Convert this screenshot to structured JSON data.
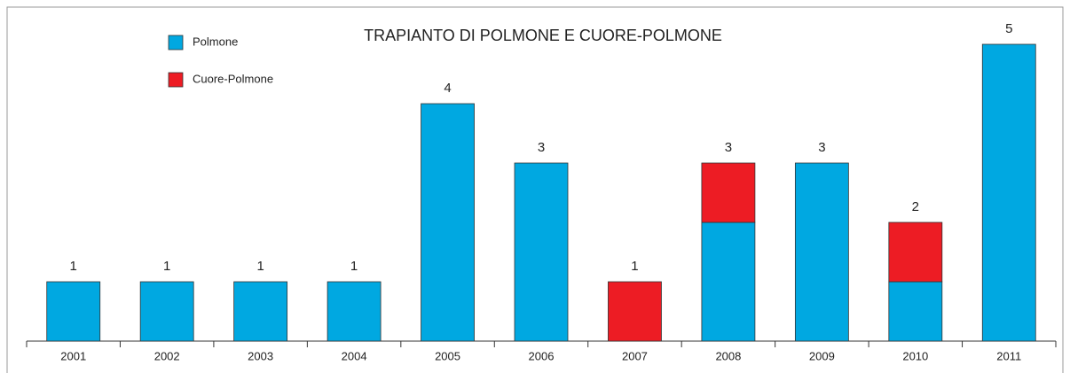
{
  "chart_data": {
    "type": "stacked_bar",
    "title": "TRAPIANTO DI POLMONE E CUORE-POLMONE",
    "categories": [
      "2001",
      "2002",
      "2003",
      "2004",
      "2005",
      "2006",
      "2007",
      "2008",
      "2009",
      "2010",
      "2011"
    ],
    "series": [
      {
        "name": "Polmone",
        "color": "#00a8e1",
        "values": [
          1,
          1,
          1,
          1,
          4,
          3,
          0,
          2,
          3,
          1,
          5
        ]
      },
      {
        "name": "Cuore-Polmone",
        "color": "#ed1c24",
        "values": [
          0,
          0,
          0,
          0,
          0,
          0,
          1,
          1,
          0,
          1,
          0
        ]
      }
    ],
    "total_labels": [
      "1",
      "1",
      "1",
      "1",
      "4",
      "3",
      "1",
      "3",
      "3",
      "2",
      "5"
    ],
    "ylim": [
      0,
      5.5
    ],
    "legend": "top-left"
  }
}
